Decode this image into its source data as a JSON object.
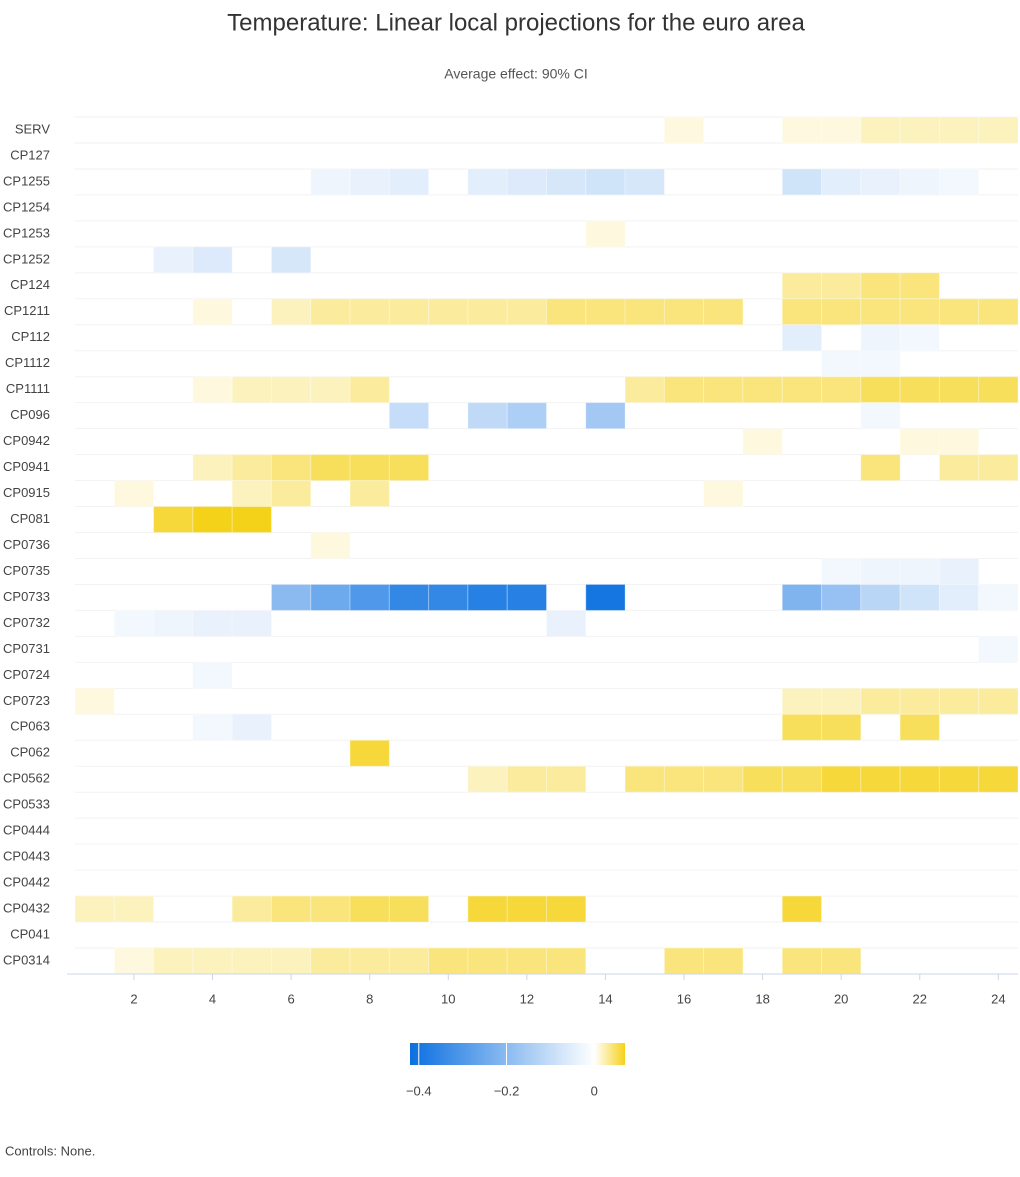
{
  "chart_data": {
    "type": "heatmap",
    "title": "Temperature: Linear local projections for the euro area",
    "subtitle": "Average effect: 90% CI",
    "footnote": "Controls: None.",
    "x": [
      1,
      2,
      3,
      4,
      5,
      6,
      7,
      8,
      9,
      10,
      11,
      12,
      13,
      14,
      15,
      16,
      17,
      18,
      19,
      20,
      21,
      22,
      23,
      24
    ],
    "xlim": [
      0.5,
      24.5
    ],
    "xticks": [
      2,
      4,
      6,
      8,
      10,
      12,
      14,
      16,
      18,
      20,
      22,
      24
    ],
    "rows": [
      "SERV",
      "CP127",
      "CP1255",
      "CP1254",
      "CP1253",
      "CP1252",
      "CP124",
      "CP1211",
      "CP112",
      "CP1112",
      "CP1111",
      "CP096",
      "CP0942",
      "CP0941",
      "CP0915",
      "CP081",
      "CP0736",
      "CP0735",
      "CP0733",
      "CP0732",
      "CP0731",
      "CP0724",
      "CP0723",
      "CP063",
      "CP062",
      "CP0562",
      "CP0533",
      "CP0444",
      "CP0443",
      "CP0442",
      "CP0432",
      "CP041",
      "CP0314"
    ],
    "zlim": [
      -0.42,
      0.07
    ],
    "zticks": [
      {
        "value": -0.4,
        "label": "−0.4"
      },
      {
        "value": -0.2,
        "label": "−0.2"
      },
      0
    ],
    "negative_color": "#0a6fe0",
    "positive_color": "#f5d21a",
    "values": [
      [
        null,
        null,
        null,
        null,
        null,
        null,
        null,
        null,
        null,
        null,
        null,
        null,
        null,
        null,
        null,
        0.01,
        null,
        null,
        0.01,
        0.01,
        0.02,
        0.02,
        0.02,
        0.02
      ],
      [
        null,
        null,
        null,
        null,
        null,
        null,
        null,
        null,
        null,
        null,
        null,
        null,
        null,
        null,
        null,
        null,
        null,
        null,
        null,
        null,
        null,
        null,
        null,
        null
      ],
      [
        null,
        null,
        null,
        null,
        null,
        null,
        -0.03,
        -0.04,
        -0.05,
        null,
        -0.05,
        -0.06,
        -0.07,
        -0.08,
        -0.07,
        null,
        null,
        null,
        -0.08,
        -0.05,
        -0.04,
        -0.03,
        -0.02,
        null
      ],
      [
        null,
        null,
        null,
        null,
        null,
        null,
        null,
        null,
        null,
        null,
        null,
        null,
        null,
        null,
        null,
        null,
        null,
        null,
        null,
        null,
        null,
        null,
        null,
        null
      ],
      [
        null,
        null,
        null,
        null,
        null,
        null,
        null,
        null,
        null,
        null,
        null,
        null,
        null,
        0.01,
        null,
        null,
        null,
        null,
        null,
        null,
        null,
        null,
        null,
        null
      ],
      [
        null,
        null,
        -0.04,
        -0.06,
        null,
        -0.07,
        null,
        null,
        null,
        null,
        null,
        null,
        null,
        null,
        null,
        null,
        null,
        null,
        null,
        null,
        null,
        null,
        null,
        null
      ],
      [
        null,
        null,
        null,
        null,
        null,
        null,
        null,
        null,
        null,
        null,
        null,
        null,
        null,
        null,
        null,
        null,
        null,
        null,
        0.03,
        0.03,
        0.04,
        0.04,
        null,
        null
      ],
      [
        null,
        null,
        null,
        0.01,
        null,
        0.02,
        0.03,
        0.03,
        0.03,
        0.03,
        0.03,
        0.03,
        0.04,
        0.04,
        0.04,
        0.04,
        0.04,
        null,
        0.04,
        0.04,
        0.04,
        0.04,
        0.04,
        0.04
      ],
      [
        null,
        null,
        null,
        null,
        null,
        null,
        null,
        null,
        null,
        null,
        null,
        null,
        null,
        null,
        null,
        null,
        null,
        null,
        -0.05,
        null,
        -0.03,
        -0.02,
        null,
        null
      ],
      [
        null,
        null,
        null,
        null,
        null,
        null,
        null,
        null,
        null,
        null,
        null,
        null,
        null,
        null,
        null,
        null,
        null,
        null,
        null,
        -0.02,
        -0.02,
        null,
        null,
        null
      ],
      [
        null,
        null,
        null,
        0.01,
        0.02,
        0.02,
        0.02,
        0.03,
        null,
        null,
        null,
        null,
        null,
        null,
        0.03,
        0.04,
        0.04,
        0.04,
        0.04,
        0.04,
        0.05,
        0.05,
        0.05,
        0.05
      ],
      [
        null,
        null,
        null,
        null,
        null,
        null,
        null,
        null,
        -0.1,
        null,
        -0.11,
        -0.14,
        null,
        -0.16,
        null,
        null,
        null,
        null,
        null,
        null,
        -0.02,
        null,
        null,
        null
      ],
      [
        null,
        null,
        null,
        null,
        null,
        null,
        null,
        null,
        null,
        null,
        null,
        null,
        null,
        null,
        null,
        null,
        null,
        0.01,
        null,
        null,
        null,
        0.01,
        0.01,
        null
      ],
      [
        null,
        null,
        null,
        0.02,
        0.03,
        0.04,
        0.05,
        0.05,
        0.05,
        null,
        null,
        null,
        null,
        null,
        null,
        null,
        null,
        null,
        null,
        null,
        0.04,
        null,
        0.03,
        0.03
      ],
      [
        null,
        0.01,
        null,
        null,
        0.02,
        0.03,
        null,
        0.03,
        null,
        null,
        null,
        null,
        null,
        null,
        null,
        null,
        0.01,
        null,
        null,
        null,
        null,
        null,
        null,
        null
      ],
      [
        null,
        null,
        0.06,
        0.07,
        0.07,
        null,
        null,
        null,
        null,
        null,
        null,
        null,
        null,
        null,
        null,
        null,
        null,
        null,
        null,
        null,
        null,
        null,
        null,
        null
      ],
      [
        null,
        null,
        null,
        null,
        null,
        null,
        0.01,
        null,
        null,
        null,
        null,
        null,
        null,
        null,
        null,
        null,
        null,
        null,
        null,
        null,
        null,
        null,
        null,
        null
      ],
      [
        null,
        null,
        null,
        null,
        null,
        null,
        null,
        null,
        null,
        null,
        null,
        null,
        null,
        null,
        null,
        null,
        null,
        null,
        null,
        -0.02,
        -0.03,
        -0.03,
        -0.04,
        null
      ],
      [
        null,
        null,
        null,
        null,
        null,
        -0.2,
        -0.25,
        -0.3,
        -0.35,
        -0.35,
        -0.37,
        -0.37,
        null,
        -0.4,
        null,
        null,
        null,
        null,
        -0.22,
        -0.18,
        -0.12,
        -0.08,
        -0.05,
        -0.02
      ],
      [
        null,
        -0.02,
        -0.03,
        -0.04,
        -0.04,
        null,
        null,
        null,
        null,
        null,
        null,
        null,
        -0.04,
        null,
        null,
        null,
        null,
        null,
        null,
        null,
        null,
        null,
        null,
        null
      ],
      [
        null,
        null,
        null,
        null,
        null,
        null,
        null,
        null,
        null,
        null,
        null,
        null,
        null,
        null,
        null,
        null,
        null,
        null,
        null,
        null,
        null,
        null,
        null,
        -0.02
      ],
      [
        null,
        null,
        null,
        -0.02,
        null,
        null,
        null,
        null,
        null,
        null,
        null,
        null,
        null,
        null,
        null,
        null,
        null,
        null,
        null,
        null,
        null,
        null,
        null,
        null
      ],
      [
        0.01,
        null,
        null,
        null,
        null,
        null,
        null,
        null,
        null,
        null,
        null,
        null,
        null,
        null,
        null,
        null,
        null,
        null,
        0.02,
        0.02,
        0.03,
        0.03,
        0.03,
        0.03
      ],
      [
        null,
        null,
        null,
        -0.02,
        -0.04,
        null,
        null,
        null,
        null,
        null,
        null,
        null,
        null,
        null,
        null,
        null,
        null,
        null,
        0.05,
        0.05,
        null,
        0.05,
        null,
        null
      ],
      [
        null,
        null,
        null,
        null,
        null,
        null,
        null,
        0.06,
        null,
        null,
        null,
        null,
        null,
        null,
        null,
        null,
        null,
        null,
        null,
        null,
        null,
        null,
        null,
        null
      ],
      [
        null,
        null,
        null,
        null,
        null,
        null,
        null,
        null,
        null,
        null,
        0.02,
        0.03,
        0.03,
        null,
        0.04,
        0.04,
        0.04,
        0.05,
        0.05,
        0.06,
        0.06,
        0.06,
        0.06,
        0.06
      ],
      [
        null,
        null,
        null,
        null,
        null,
        null,
        null,
        null,
        null,
        null,
        null,
        null,
        null,
        null,
        null,
        null,
        null,
        null,
        null,
        null,
        null,
        null,
        null,
        null
      ],
      [
        null,
        null,
        null,
        null,
        null,
        null,
        null,
        null,
        null,
        null,
        null,
        null,
        null,
        null,
        null,
        null,
        null,
        null,
        null,
        null,
        null,
        null,
        null,
        null
      ],
      [
        null,
        null,
        null,
        null,
        null,
        null,
        null,
        null,
        null,
        null,
        null,
        null,
        null,
        null,
        null,
        null,
        null,
        null,
        null,
        null,
        null,
        null,
        null,
        null
      ],
      [
        null,
        null,
        null,
        null,
        null,
        null,
        null,
        null,
        null,
        null,
        null,
        null,
        null,
        null,
        null,
        null,
        null,
        null,
        null,
        null,
        null,
        null,
        null,
        null
      ],
      [
        0.02,
        0.02,
        null,
        null,
        0.03,
        0.04,
        0.04,
        0.05,
        0.05,
        null,
        0.06,
        0.06,
        0.06,
        null,
        null,
        null,
        null,
        null,
        0.06,
        null,
        null,
        null,
        null,
        null
      ],
      [
        null,
        null,
        null,
        null,
        null,
        null,
        null,
        null,
        null,
        null,
        null,
        null,
        null,
        null,
        null,
        null,
        null,
        null,
        null,
        null,
        null,
        null,
        null,
        null
      ],
      [
        null,
        0.01,
        0.02,
        0.02,
        0.02,
        0.02,
        0.03,
        0.03,
        0.03,
        0.04,
        0.04,
        0.04,
        0.04,
        null,
        null,
        0.04,
        0.04,
        null,
        0.04,
        0.04,
        null,
        null,
        null,
        null
      ]
    ]
  }
}
